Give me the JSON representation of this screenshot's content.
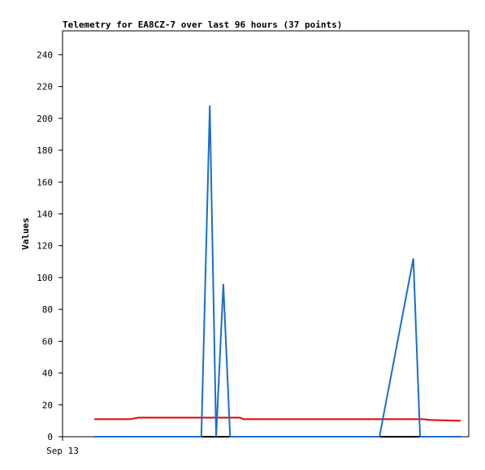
{
  "chart_data": {
    "type": "line",
    "title": "Telemetry for EA8CZ-7 over last 96 hours (37 points)",
    "y_label": "Values",
    "xlim": [
      0,
      96
    ],
    "xticks": [
      {
        "value": 0,
        "label": "Sep 13"
      }
    ],
    "ylim": [
      0,
      255
    ],
    "yticks": [
      0,
      20,
      40,
      60,
      80,
      100,
      120,
      140,
      160,
      180,
      200,
      220,
      240
    ],
    "series": [
      {
        "color": "#000000",
        "x": [
          7.5,
          94.1
        ],
        "values": [
          0,
          0
        ]
      },
      {
        "color": "#e00000",
        "x": [
          7.5,
          15.9,
          17.9,
          41.9,
          42.8,
          85.1,
          87.0,
          94.1
        ],
        "values": [
          11,
          11,
          12,
          12,
          11,
          11,
          10.5,
          10
        ]
      },
      {
        "color": "#1a6ecf",
        "x": [
          7.5,
          32.8,
          34.8,
          36.3,
          38.0,
          39.6,
          74.9,
          82.9,
          84.5,
          94.1
        ],
        "values": [
          0,
          0,
          208,
          0,
          96,
          0,
          0,
          112,
          0,
          0
        ]
      }
    ]
  }
}
